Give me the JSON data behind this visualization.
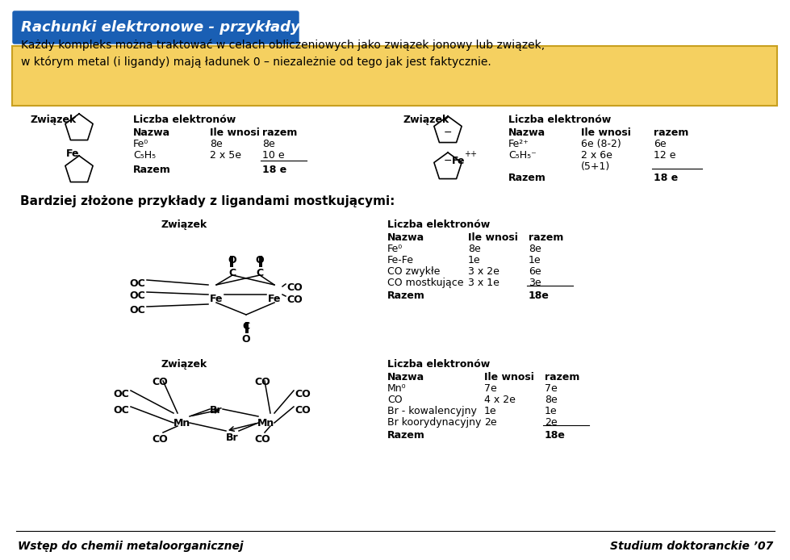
{
  "title": "Rachunki elektronowe - przykłady:",
  "title_bg": "#1a5fb4",
  "title_color": "#ffffff",
  "intro_bg": "#f5d060",
  "intro_text": "Każdy kompleks można traktować w celach obliczeniowych jako związek jonowy lub związek,\nw którym metal (i ligandy) mają ładunek 0 – niezależnie od tego jak jest faktycznie.",
  "footer_left": "Wstęp do chemii metaloorganicznej",
  "footer_right": "Studium doktoranckie ’07",
  "bg_color": "#ffffff",
  "sec1_title1": "Związek",
  "sec1_title2": "Liczba elektronów",
  "sec1_title3": "Związek",
  "sec1_title4": "Liczba elektronów",
  "sec2_heading": "Bardziej złożone przykłady z ligandami mostkującymi:",
  "sec2_title1": "Związek",
  "sec2_title2": "Liczba elektronów",
  "sec3_title1": "Związek",
  "sec3_title2": "Liczba elektronów",
  "table1": {
    "col1": [
      "Nazwa",
      "Fe⁰",
      "C₅H₅",
      "Razem"
    ],
    "col2": [
      "Ile wnosi",
      "8e",
      "2 x 5e",
      ""
    ],
    "col3": [
      "razem",
      "8e",
      "10 e",
      "18 e"
    ],
    "underline_before": 3
  },
  "table2": {
    "col1": [
      "Nazwa",
      "Fe²⁺",
      "C₅H₅⁻",
      "",
      "Razem"
    ],
    "col2": [
      "Ile wnosi",
      "6e (8-2)",
      "2 x 6e",
      "(5+1)",
      ""
    ],
    "col3": [
      "razem",
      "6e",
      "12 e",
      "",
      "18 e"
    ],
    "underline_before": 4
  },
  "table3": {
    "col1": [
      "Nazwa",
      "Fe⁰",
      "Fe-Fe",
      "CO zwykłe",
      "CO mostkujące",
      "Razem"
    ],
    "col2": [
      "Ile wnosi",
      "8e",
      "1e",
      "3 x 2e",
      "3 x 1e",
      ""
    ],
    "col3": [
      "razem",
      "8e",
      "1e",
      "6e",
      "3e",
      "18e"
    ],
    "underline_before": 5
  },
  "table4": {
    "col1": [
      "Nazwa",
      "Mn⁰",
      "CO",
      "Br - kowalencyjny",
      "Br koorydynacyjny",
      "Razem"
    ],
    "col2": [
      "Ile wnosi",
      "7e",
      "4 x 2e",
      "1e",
      "2e",
      ""
    ],
    "col3": [
      "razem",
      "7e",
      "8e",
      "1e",
      "2e",
      "18e"
    ],
    "underline_before": 5
  }
}
